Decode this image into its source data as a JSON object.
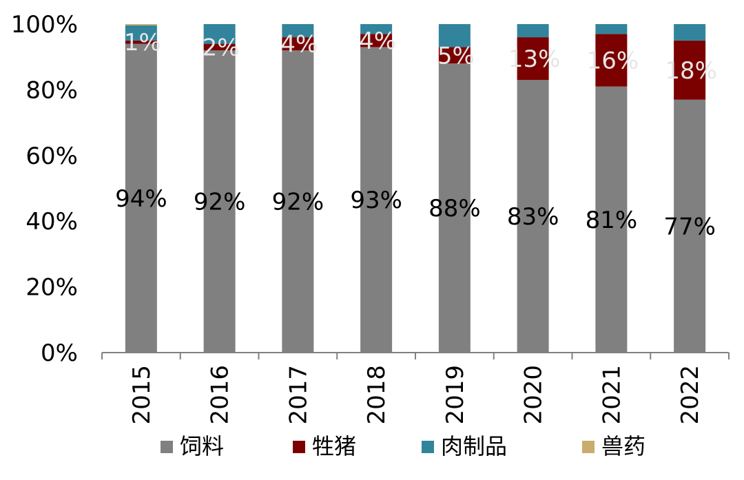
{
  "chart_data": {
    "type": "bar",
    "stacked": true,
    "percent_stacked": true,
    "categories": [
      "2015",
      "2016",
      "2017",
      "2018",
      "2019",
      "2020",
      "2021",
      "2022"
    ],
    "series": [
      {
        "name": "饲料",
        "color": "#808080",
        "values": [
          94,
          92,
          92,
          93,
          88,
          83,
          81,
          77
        ],
        "data_labels": [
          "94%",
          "92%",
          "92%",
          "93%",
          "88%",
          "83%",
          "81%",
          "77%"
        ]
      },
      {
        "name": "牲猪",
        "color": "#7B0000",
        "values": [
          1,
          2,
          4,
          4,
          5,
          13,
          16,
          18
        ],
        "data_labels": [
          "1%",
          "2%",
          "4%",
          "4%",
          "5%",
          "13%",
          "16%",
          "18%"
        ]
      },
      {
        "name": "肉制品",
        "color": "#31849B",
        "values": [
          4.6,
          6,
          4,
          3,
          7,
          4,
          3,
          5
        ],
        "data_labels": []
      },
      {
        "name": "兽药",
        "color": "#C9AC6E",
        "values": [
          0.4,
          0,
          0,
          0,
          0,
          0,
          0,
          0
        ],
        "data_labels": []
      }
    ],
    "yaxis": {
      "ticks": [
        "0%",
        "20%",
        "40%",
        "60%",
        "80%",
        "100%"
      ],
      "ylim": [
        0,
        100
      ]
    },
    "xlabel": "",
    "ylabel": "",
    "title": "",
    "legend_position": "bottom",
    "grid": false
  }
}
